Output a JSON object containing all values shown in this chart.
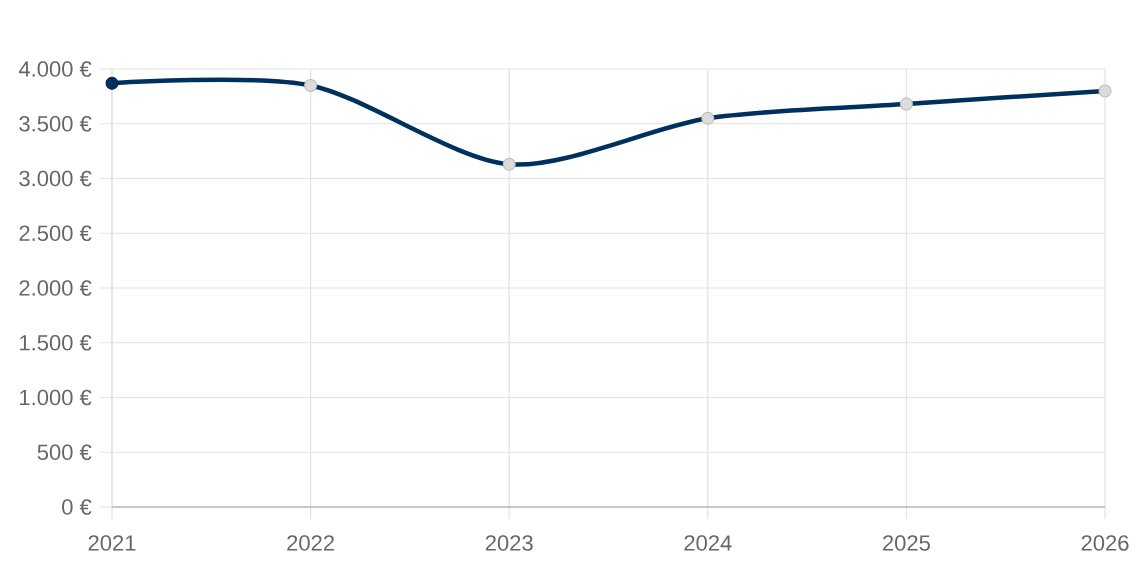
{
  "chart_data": {
    "type": "line",
    "categories": [
      "2021",
      "2022",
      "2023",
      "2024",
      "2025",
      "2026"
    ],
    "values": [
      3870,
      3850,
      3130,
      3550,
      3680,
      3800
    ],
    "color": "#00305e",
    "colors": [
      "#00305e",
      "#dcdcdc",
      "#dcdcdc",
      "#dcdcdc",
      "#dcdcdc",
      "#dcdcdc"
    ],
    "ylim": [
      0,
      4000
    ],
    "yticks": [
      {
        "value": 0,
        "label": "0 €"
      },
      {
        "value": 500,
        "label": "500 €"
      },
      {
        "value": 1000,
        "label": "1.000 €"
      },
      {
        "value": 1500,
        "label": "1.500 €"
      },
      {
        "value": 2000,
        "label": "2.000 €"
      },
      {
        "value": 2500,
        "label": "2.500 €"
      },
      {
        "value": 3000,
        "label": "3.000 €"
      },
      {
        "value": 3500,
        "label": "3.500 €"
      },
      {
        "value": 4000,
        "label": "4.000 €"
      }
    ],
    "grid": true,
    "marker": "circle",
    "line_style": "solid"
  }
}
